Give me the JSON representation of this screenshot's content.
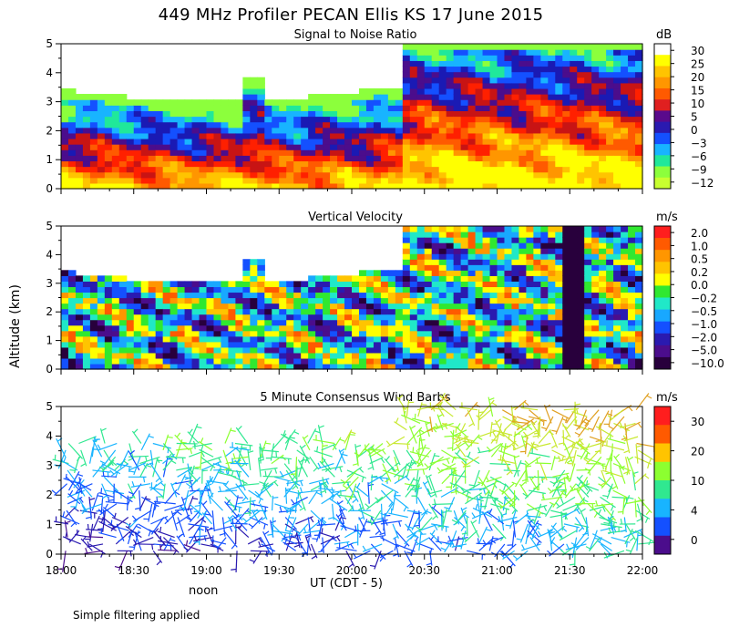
{
  "title": "449 MHz Profiler PECAN Ellis KS 17 June 2015",
  "ylabel": "Altitude (km)",
  "xlabel": "UT  (CDT - 5)",
  "noon_label": "noon",
  "footnote": "Simple filtering applied",
  "time_ticks": [
    "18:00",
    "18:30",
    "19:00",
    "19:30",
    "20:00",
    "20:30",
    "21:00",
    "21:30",
    "22:00"
  ],
  "altitude_ticks": [
    "0",
    "1",
    "2",
    "3",
    "4",
    "5"
  ],
  "chart_data": [
    {
      "type": "heatmap",
      "title": "Signal to Noise Ratio",
      "unit": "dB",
      "ylim": [
        0,
        5
      ],
      "colorbar_labels": [
        "30",
        "25",
        "20",
        "15",
        "10",
        "5",
        "0",
        "−3",
        "−6",
        "−9",
        "−12"
      ],
      "colorbar_colors": [
        "#ffffff",
        "#ffff00",
        "#ffc400",
        "#ff9600",
        "#ff5a00",
        "#e02020",
        "#5a0a8c",
        "#2a1ab0",
        "#1450ff",
        "#18b4ff",
        "#20e89a",
        "#8cff3c",
        "#c8ff30"
      ],
      "colors": [
        "#ffff00",
        "#ffc400",
        "#ff9600",
        "#ff5a00",
        "#ff2000",
        "#c81414",
        "#4b0d8c",
        "#1a1ab4",
        "#1450ff",
        "#18b4ff",
        "#20e89a",
        "#8cff3c",
        "#ffffff"
      ]
    },
    {
      "type": "heatmap",
      "title": "Vertical Velocity",
      "unit": "m/s",
      "ylim": [
        0,
        5
      ],
      "colorbar_labels": [
        "2.0",
        "1.0",
        "0.5",
        "0.2",
        "0.0",
        "−0.2",
        "−0.5",
        "−1.0",
        "−2.0",
        "−5.0",
        "−10.0"
      ],
      "colorbar_colors": [
        "#ff1e1e",
        "#ff5a00",
        "#ff9600",
        "#ffc400",
        "#ffff00",
        "#30e830",
        "#20e8c8",
        "#18a8ff",
        "#1450ff",
        "#2a1ab0",
        "#4b0d8c",
        "#28003c"
      ],
      "colors": [
        "#ff5a00",
        "#ff9600",
        "#ffc400",
        "#ffff00",
        "#30e830",
        "#20e8c8",
        "#18a8ff",
        "#1450ff",
        "#2a1ab0",
        "#4b0d8c",
        "#28003c"
      ]
    },
    {
      "type": "scatter",
      "title": "5 Minute Consensus Wind Barbs",
      "unit": "m/s",
      "ylim": [
        0,
        5
      ],
      "colorbar_labels": [
        "30",
        "20",
        "10",
        "4",
        "0"
      ],
      "colorbar_colors": [
        "#ff1e1e",
        "#ff5a00",
        "#ffc400",
        "#8cff30",
        "#30e890",
        "#18b4ff",
        "#1450ff",
        "#4b0d8c"
      ],
      "colors": [
        "#4b0d8c",
        "#2a1ab0",
        "#1450ff",
        "#18b4ff",
        "#30e890",
        "#8cff30",
        "#c8e830",
        "#e0a020"
      ]
    }
  ]
}
